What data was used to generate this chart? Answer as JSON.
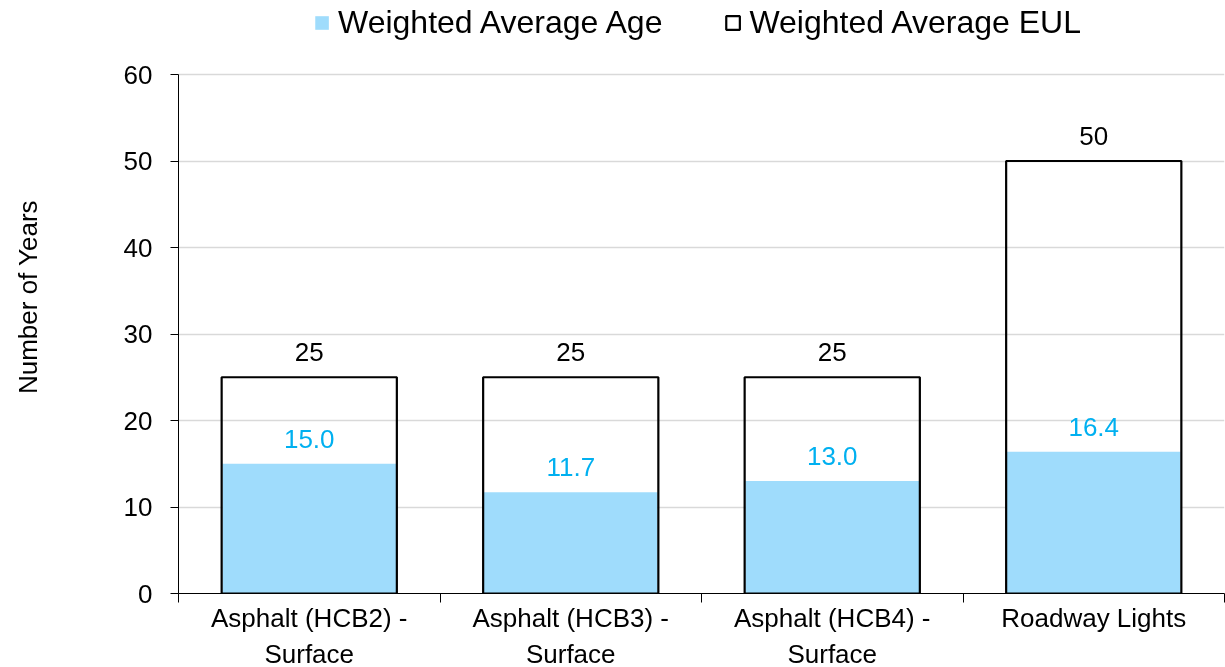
{
  "chart_data": {
    "type": "bar",
    "ylabel": "Number of Years",
    "categories": [
      "Asphalt (HCB2) - Surface",
      "Asphalt (HCB3) - Surface",
      "Asphalt (HCB4) - Surface",
      "Roadway Lights"
    ],
    "series": [
      {
        "name": "Weighted Average Age",
        "color": "#9fdcfc",
        "values": [
          15.0,
          11.7,
          13.0,
          16.4
        ],
        "value_labels": [
          "15.0",
          "11.7",
          "13.0",
          "16.4"
        ]
      },
      {
        "name": "Weighted Average EUL",
        "color": "#000000",
        "line_style": "solid",
        "values": [
          25,
          25,
          25,
          50
        ],
        "value_labels": [
          "25",
          "25",
          "25",
          "50"
        ]
      }
    ],
    "ylim": [
      0,
      60
    ],
    "yticks": [
      0,
      10,
      20,
      30,
      40,
      50,
      60
    ],
    "grid": "y",
    "legend": "top"
  }
}
